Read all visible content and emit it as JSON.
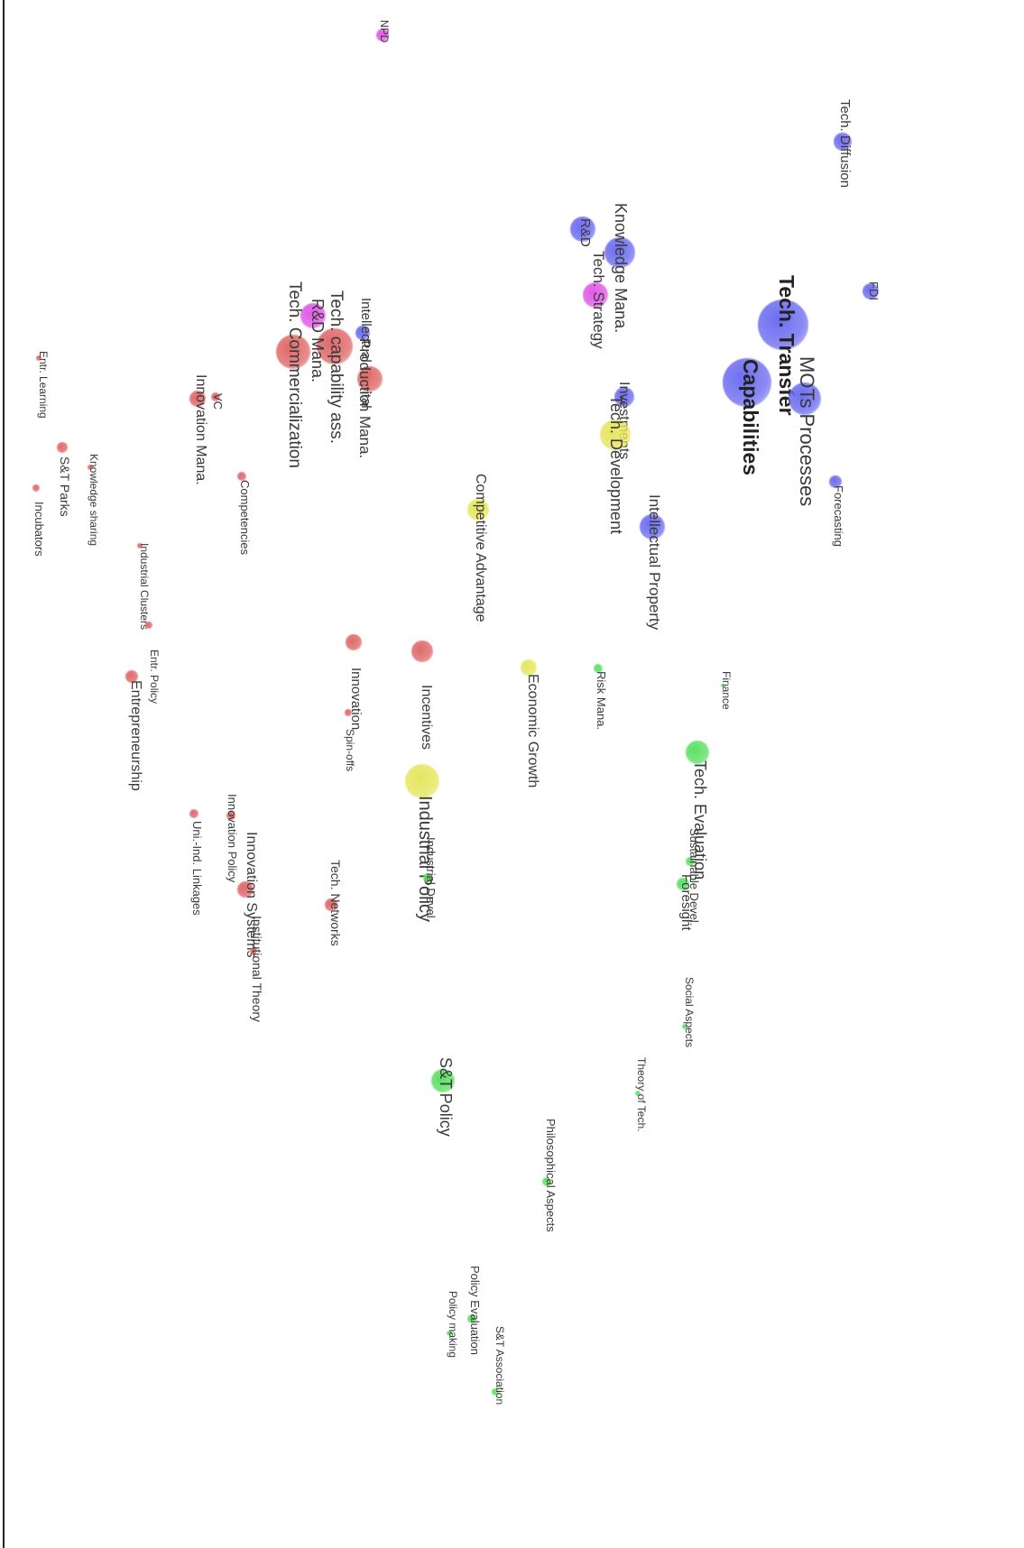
{
  "colors": {
    "blue": "#6e6ef0",
    "magenta": "#e05ae6",
    "red": "#e06a6a",
    "yellow": "#e6e660",
    "green": "#5ee065"
  },
  "nodes": [
    {
      "id": "npd",
      "label": "NPD",
      "cluster": "magenta",
      "weight": 1,
      "emphasis": "normal"
    },
    {
      "id": "tech-diffusion",
      "label": "Tech. Diffusion",
      "cluster": "blue",
      "weight": 2,
      "emphasis": "normal"
    },
    {
      "id": "knowledge-mana",
      "label": "Knowledge Mana.",
      "cluster": "blue",
      "weight": 3,
      "emphasis": "normal"
    },
    {
      "id": "rd",
      "label": "R&D",
      "cluster": "blue",
      "weight": 3,
      "emphasis": "normal"
    },
    {
      "id": "tech-strategy",
      "label": "Tech. Strategy",
      "cluster": "magenta",
      "weight": 3,
      "emphasis": "normal"
    },
    {
      "id": "fdi",
      "label": "FDI",
      "cluster": "blue",
      "weight": 2,
      "emphasis": "normal"
    },
    {
      "id": "tech-transfer",
      "label": "Tech. Transfer",
      "cluster": "blue",
      "weight": 6,
      "emphasis": "bold"
    },
    {
      "id": "capabilities",
      "label": "Capabilities",
      "cluster": "blue",
      "weight": 6,
      "emphasis": "bold"
    },
    {
      "id": "mots-processes",
      "label": "MOTs Processes",
      "cluster": "blue",
      "weight": 4,
      "emphasis": "normal"
    },
    {
      "id": "investments",
      "label": "Investments",
      "cluster": "blue",
      "weight": 2,
      "emphasis": "normal"
    },
    {
      "id": "tech-development",
      "label": "Tech. Development",
      "cluster": "yellow",
      "weight": 4,
      "emphasis": "normal"
    },
    {
      "id": "forecasting",
      "label": "Forecasting",
      "cluster": "blue",
      "weight": 1,
      "emphasis": "normal"
    },
    {
      "id": "intellectual-property",
      "label": "Intellectual Property",
      "cluster": "blue",
      "weight": 3,
      "emphasis": "normal"
    },
    {
      "id": "competitive-advantage",
      "label": "Competitive Advantage",
      "cluster": "yellow",
      "weight": 2,
      "emphasis": "normal"
    },
    {
      "id": "intellectual-capital",
      "label": "Intellectual Capital",
      "cluster": "blue",
      "weight": 2,
      "emphasis": "normal"
    },
    {
      "id": "production-mana",
      "label": "Production Mana.",
      "cluster": "red",
      "weight": 3,
      "emphasis": "normal"
    },
    {
      "id": "tech-capability-ass",
      "label": "Tech. capability ass.",
      "cluster": "red",
      "weight": 4,
      "emphasis": "normal"
    },
    {
      "id": "rd-mana",
      "label": "R&D Mana.",
      "cluster": "magenta",
      "weight": 3,
      "emphasis": "normal"
    },
    {
      "id": "tech-commercialization",
      "label": "Tech. Commercialization",
      "cluster": "red",
      "weight": 4,
      "emphasis": "normal"
    },
    {
      "id": "entr-learning",
      "label": "Entr. Learning",
      "cluster": "red",
      "weight": 1,
      "emphasis": "normal"
    },
    {
      "id": "innovation-mana",
      "label": "Innovation Mana.",
      "cluster": "red",
      "weight": 2,
      "emphasis": "normal"
    },
    {
      "id": "vc",
      "label": "VC",
      "cluster": "red",
      "weight": 1,
      "emphasis": "normal"
    },
    {
      "id": "knowledge-sharing",
      "label": "Knowledge sharing",
      "cluster": "red",
      "weight": 1,
      "emphasis": "normal"
    },
    {
      "id": "st-parks",
      "label": "S&T Parks",
      "cluster": "red",
      "weight": 1,
      "emphasis": "normal"
    },
    {
      "id": "incubators",
      "label": "Incubators",
      "cluster": "red",
      "weight": 1,
      "emphasis": "normal"
    },
    {
      "id": "competencies",
      "label": "Competencies",
      "cluster": "red",
      "weight": 1,
      "emphasis": "normal"
    },
    {
      "id": "industrial-clusters",
      "label": "Industrial Clusters",
      "cluster": "red",
      "weight": 1,
      "emphasis": "normal"
    },
    {
      "id": "entr-policy",
      "label": "Entr. Policy",
      "cluster": "red",
      "weight": 1,
      "emphasis": "normal"
    },
    {
      "id": "entrepreneurship",
      "label": "Entrepreneurship",
      "cluster": "red",
      "weight": 2,
      "emphasis": "normal"
    },
    {
      "id": "innovation",
      "label": "Innovation",
      "cluster": "red",
      "weight": 2,
      "emphasis": "normal"
    },
    {
      "id": "spin-offs",
      "label": "Spin-offs",
      "cluster": "red",
      "weight": 1,
      "emphasis": "normal"
    },
    {
      "id": "incentives",
      "label": "Incentives",
      "cluster": "red",
      "weight": 3,
      "emphasis": "normal"
    },
    {
      "id": "economic-growth",
      "label": "Economic Growth",
      "cluster": "yellow",
      "weight": 2,
      "emphasis": "normal"
    },
    {
      "id": "risk-mana",
      "label": "Risk Mana.",
      "cluster": "green",
      "weight": 1,
      "emphasis": "normal"
    },
    {
      "id": "finance",
      "label": "Finance",
      "cluster": "green",
      "weight": 1,
      "emphasis": "normal"
    },
    {
      "id": "tech-evaluation",
      "label": "Tech. Evaluation",
      "cluster": "green",
      "weight": 3,
      "emphasis": "normal"
    },
    {
      "id": "industrial-policy",
      "label": "Industrial Policy",
      "cluster": "yellow",
      "weight": 4,
      "emphasis": "normal"
    },
    {
      "id": "uni-ind-linkages",
      "label": "Uni.-Ind. Linkages",
      "cluster": "red",
      "weight": 1,
      "emphasis": "normal"
    },
    {
      "id": "innovation-policy",
      "label": "Innovation Policy",
      "cluster": "red",
      "weight": 1,
      "emphasis": "normal"
    },
    {
      "id": "innovation-systems",
      "label": "Innovation Systems",
      "cluster": "red",
      "weight": 2,
      "emphasis": "normal"
    },
    {
      "id": "institutional-theory",
      "label": "Institutional Theory",
      "cluster": "red",
      "weight": 1,
      "emphasis": "normal"
    },
    {
      "id": "tech-networks",
      "label": "Tech. Networks",
      "cluster": "red",
      "weight": 2,
      "emphasis": "normal"
    },
    {
      "id": "industrial-devel",
      "label": "Industrial Devel.",
      "cluster": "green",
      "weight": 1,
      "emphasis": "normal"
    },
    {
      "id": "sustainable-devel",
      "label": "Sustainable Devel.",
      "cluster": "green",
      "weight": 1,
      "emphasis": "normal"
    },
    {
      "id": "foresight",
      "label": "Foresight",
      "cluster": "green",
      "weight": 2,
      "emphasis": "normal"
    },
    {
      "id": "social-aspects",
      "label": "Social Aspects",
      "cluster": "green",
      "weight": 1,
      "emphasis": "normal"
    },
    {
      "id": "theory-of-tech",
      "label": "Theory of Tech.",
      "cluster": "green",
      "weight": 1,
      "emphasis": "normal"
    },
    {
      "id": "st-policy",
      "label": "S&T Policy",
      "cluster": "green",
      "weight": 3,
      "emphasis": "normal"
    },
    {
      "id": "philosophical-aspects",
      "label": "Philosophical Aspects",
      "cluster": "green",
      "weight": 1,
      "emphasis": "normal"
    },
    {
      "id": "policy-evaluation",
      "label": "Policy Evaluation",
      "cluster": "green",
      "weight": 1,
      "emphasis": "normal"
    },
    {
      "id": "policy-making",
      "label": "Policy making",
      "cluster": "green",
      "weight": 1,
      "emphasis": "normal"
    },
    {
      "id": "st-association",
      "label": "S&T Association",
      "cluster": "green",
      "weight": 1,
      "emphasis": "normal"
    }
  ]
}
